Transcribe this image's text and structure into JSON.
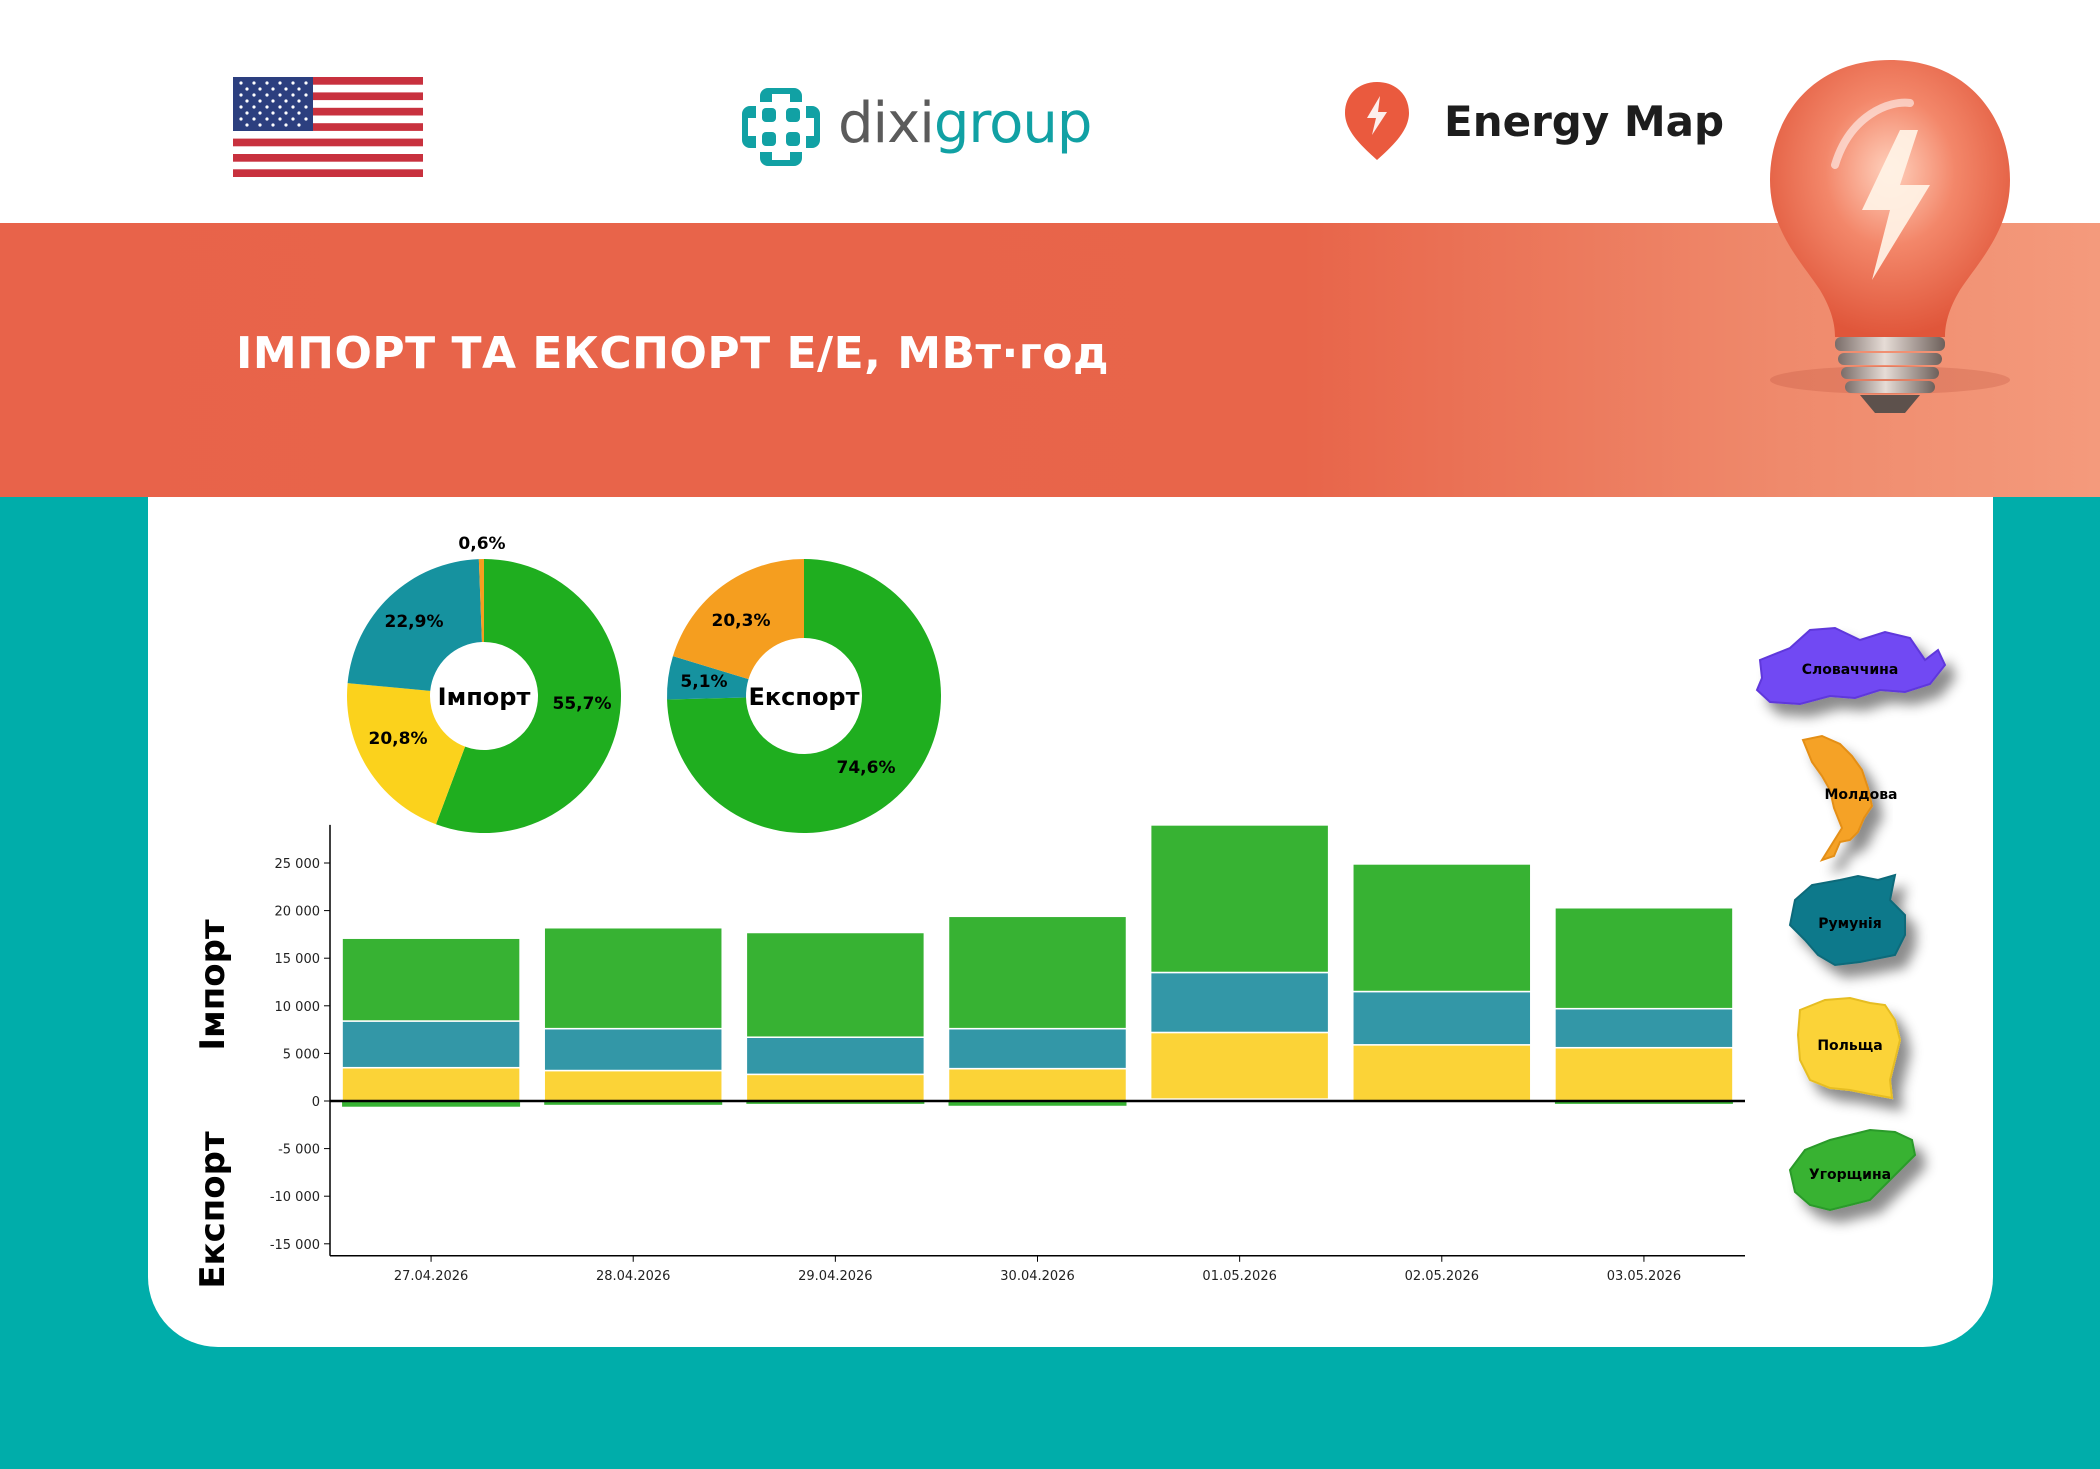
{
  "header": {
    "brand_left_1": "dixi",
    "brand_left_2": "group",
    "brand_right": "Energy Map",
    "flag_icon": "us-flag-icon",
    "pin_icon": "lightning-pin-icon"
  },
  "banner": {
    "title": "ІМПОРТ ТА ЕКСПОРТ Е/Е, МВт·год",
    "image_icon": "light-bulb-icon"
  },
  "colors": {
    "accent": "#e8634a",
    "teal": "#00adaa",
    "brand_teal": "#11a1a4",
    "hungary": "#37b233",
    "romania": "#3397a7",
    "poland": "#fbd337",
    "moldova": "#f5a228",
    "slovakia": "#7148f3"
  },
  "chart_data": [
    {
      "type": "pie",
      "variant": "donut",
      "center_label": "Імпорт",
      "slices": [
        {
          "country": "Угорщина",
          "value": 55.7,
          "label": "55,7%",
          "color": "#1fae1f"
        },
        {
          "country": "Польща",
          "value": 20.8,
          "label": "20,8%",
          "color": "#fbd21c"
        },
        {
          "country": "Румунія",
          "value": 22.9,
          "label": "22,9%",
          "color": "#16929f"
        },
        {
          "country": "Молдова",
          "value": 0.6,
          "label": "0,6%",
          "color": "#f59e1f"
        }
      ]
    },
    {
      "type": "pie",
      "variant": "donut",
      "center_label": "Експорт",
      "slices": [
        {
          "country": "Угорщина",
          "value": 74.6,
          "label": "74,6%",
          "color": "#1fae1f"
        },
        {
          "country": "Румунія",
          "value": 5.1,
          "label": "5,1%",
          "color": "#16929f"
        },
        {
          "country": "Молдова",
          "value": 20.3,
          "label": "20,3%",
          "color": "#f59e1f"
        }
      ]
    },
    {
      "type": "bar",
      "stacked": true,
      "categories": [
        "27.04.2026",
        "28.04.2026",
        "29.04.2026",
        "30.04.2026",
        "01.05.2026",
        "02.05.2026",
        "03.05.2026"
      ],
      "ylim": [
        -15000,
        29000
      ],
      "yticks": [
        25000,
        20000,
        15000,
        10000,
        5000,
        0,
        -5000,
        -10000,
        -15000
      ],
      "ytick_labels": [
        "25 000",
        "20 000",
        "15 000",
        "10 000",
        "5 000",
        "0",
        "-5 000",
        "-10 000",
        "-15 000"
      ],
      "upper_axis_label": "Імпорт",
      "lower_axis_label": "Експорт",
      "series": [
        {
          "name": "Молдова",
          "color": "#e8634a",
          "import": [
            0,
            0,
            0,
            0,
            200,
            0,
            0
          ],
          "export": [
            0,
            0,
            0,
            0,
            0,
            0,
            0
          ]
        },
        {
          "name": "Польща",
          "color": "#fbd337",
          "import": [
            3500,
            3200,
            2800,
            3400,
            7000,
            5900,
            5600
          ],
          "export": [
            0,
            0,
            0,
            0,
            0,
            0,
            0
          ]
        },
        {
          "name": "Румунія",
          "color": "#3397a7",
          "import": [
            4900,
            4400,
            3900,
            4200,
            6300,
            5600,
            4100
          ],
          "export": [
            0,
            0,
            0,
            0,
            0,
            0,
            0
          ]
        },
        {
          "name": "Угорщина",
          "color": "#37b233",
          "import": [
            8700,
            10600,
            11000,
            11800,
            15500,
            13400,
            10600
          ],
          "export": [
            -600,
            -400,
            -300,
            -500,
            0,
            0,
            -300
          ]
        }
      ]
    }
  ],
  "legend": [
    {
      "name": "Словаччина",
      "color": "#7148f3"
    },
    {
      "name": "Молдова",
      "color": "#f5a228"
    },
    {
      "name": "Румунія",
      "color": "#11798b"
    },
    {
      "name": "Польща",
      "color": "#fbd337"
    },
    {
      "name": "Угорщина",
      "color": "#37b233"
    }
  ]
}
